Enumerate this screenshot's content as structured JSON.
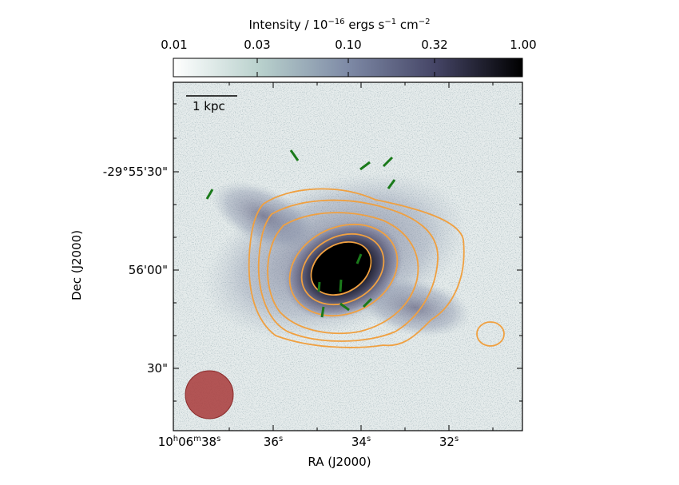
{
  "colorbar": {
    "title": "Intensity / 10",
    "title_exp1": "−16",
    "title_mid": " ergs s",
    "title_exp2": "−1",
    "title_mid2": " cm",
    "title_exp3": "−2",
    "ticks": [
      "0.01",
      "0.03",
      "0.10",
      "0.32",
      "1.00"
    ]
  },
  "scalebar": {
    "label": "1 kpc"
  },
  "axes": {
    "x_title": "RA (J2000)",
    "y_title": "Dec (J2000)",
    "x_ticks": [
      {
        "main": "10",
        "s1": "h",
        "m": "06",
        "s2": "m",
        "sec": "38",
        "s3": "s"
      },
      {
        "main": "36",
        "s3": "s"
      },
      {
        "main": "34",
        "s3": "s"
      },
      {
        "main": "32",
        "s3": "s"
      }
    ],
    "y_ticks": [
      "-29°55'30\"",
      "56'00\"",
      "30\""
    ]
  },
  "colors": {
    "contour": "#f0a040",
    "vectors": "#1a7a1a",
    "beam": "#a83a3a",
    "map_dark": "#0a0a10",
    "map_mid": "#5a5a7a",
    "map_light": "#c8d8d8"
  }
}
